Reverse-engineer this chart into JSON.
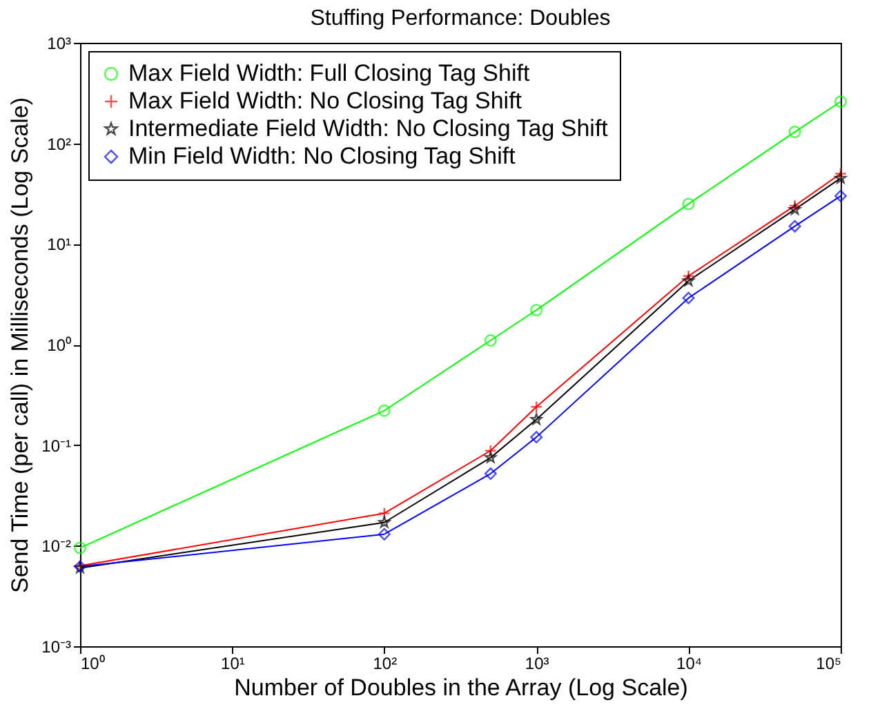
{
  "chart_data": {
    "type": "line",
    "title": "Stuffing Performance: Doubles",
    "xlabel": "Number of Doubles in the Array (Log Scale)",
    "ylabel": "Send Time (per call) in Milliseconds (Log Scale)",
    "x": [
      1,
      100,
      500,
      1000,
      10000,
      50000,
      100000
    ],
    "series": [
      {
        "name": "Max Field Width: Full Closing Tag Shift",
        "color": "#00ff00",
        "marker": "circle",
        "values": [
          0.0095,
          0.22,
          1.1,
          2.2,
          25,
          130,
          260
        ]
      },
      {
        "name": "Max Field Width: No Closing Tag Shift",
        "color": "#ff0000",
        "marker": "cross",
        "values": [
          0.0063,
          0.021,
          0.088,
          0.24,
          4.8,
          24,
          50
        ]
      },
      {
        "name": "Intermediate Field Width: No Closing Tag Shift",
        "color": "#000000",
        "marker": "star",
        "values": [
          0.006,
          0.017,
          0.075,
          0.18,
          4.3,
          22,
          45
        ]
      },
      {
        "name": "Min Field Width: No Closing Tag Shift",
        "color": "#0000ff",
        "marker": "diamond",
        "values": [
          0.0062,
          0.013,
          0.052,
          0.12,
          2.9,
          15,
          30
        ]
      }
    ],
    "log": "xy",
    "xlim": [
      1,
      100000
    ],
    "ylim": [
      0.001,
      1000
    ],
    "xticks": [
      {
        "value": 1,
        "label": "10⁰"
      },
      {
        "value": 10,
        "label": "10¹"
      },
      {
        "value": 100,
        "label": "10²"
      },
      {
        "value": 1000,
        "label": "10³"
      },
      {
        "value": 10000,
        "label": "10⁴"
      },
      {
        "value": 100000,
        "label": "10⁵"
      }
    ],
    "yticks": [
      {
        "value": 0.001,
        "label": "10⁻³"
      },
      {
        "value": 0.01,
        "label": "10⁻²"
      },
      {
        "value": 0.1,
        "label": "10⁻¹"
      },
      {
        "value": 1,
        "label": "10⁰"
      },
      {
        "value": 10,
        "label": "10¹"
      },
      {
        "value": 100,
        "label": "10²"
      },
      {
        "value": 1000,
        "label": "10³"
      }
    ],
    "grid": false,
    "legend": "top left",
    "line_style": "solid"
  }
}
